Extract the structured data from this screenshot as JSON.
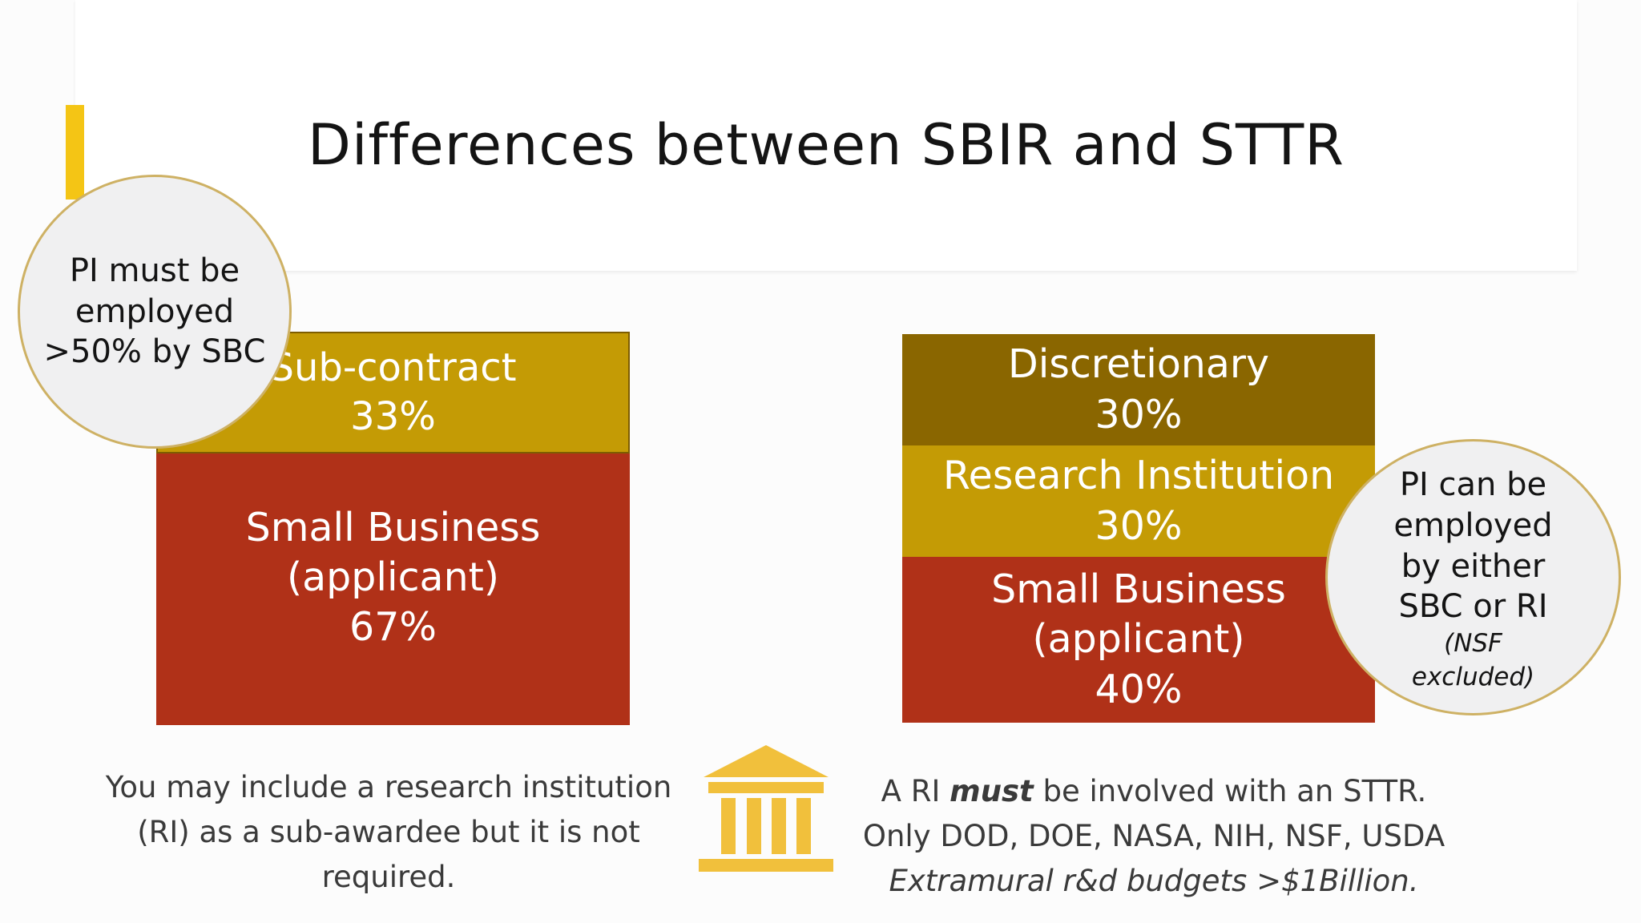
{
  "slide": {
    "title": "Differences between SBIR and STTR",
    "colors": {
      "accent": "#f4c515",
      "gold": "#c49b05",
      "olive": "#8a6600",
      "rust": "#b03118",
      "circle_fill": "#f0f0f1",
      "circle_border": "#ceb164"
    }
  },
  "sbir": {
    "circle": {
      "lines": [
        "PI must be",
        "employed",
        ">50% by SBC"
      ]
    },
    "subcontract": {
      "label": "Sub-contract",
      "value": "33%"
    },
    "small_business": {
      "label_line1": "Small Business",
      "label_line2": "(applicant)",
      "value": "67%"
    },
    "footnote": {
      "lines": [
        "You may include a research institution",
        "(RI) as a sub-awardee but it is not",
        "required."
      ]
    }
  },
  "sttr": {
    "discretionary": {
      "label": "Discretionary",
      "value": "30%"
    },
    "research_institution": {
      "label": "Research Institution",
      "value": "30%"
    },
    "small_business": {
      "label_line1": "Small Business",
      "label_line2": "(applicant)",
      "value": "40%"
    },
    "circle": {
      "lines": [
        "PI can be",
        "employed",
        "by either",
        "SBC or RI"
      ],
      "note_lines": [
        "(NSF",
        "excluded)"
      ]
    },
    "footnote": {
      "line1_pre": "A RI ",
      "line1_em": "must",
      "line1_post": " be involved with an STTR.",
      "line2": "Only DOD, DOE, NASA, NIH, NSF, USDA",
      "line3": "Extramural r&d budgets >$1Billion."
    }
  },
  "icons": {
    "institution": "bank-building-icon"
  }
}
